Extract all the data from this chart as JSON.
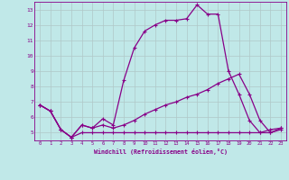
{
  "xlabel": "Windchill (Refroidissement éolien,°C)",
  "xlim": [
    -0.5,
    23.5
  ],
  "ylim": [
    4.5,
    13.5
  ],
  "yticks": [
    5,
    6,
    7,
    8,
    9,
    10,
    11,
    12,
    13
  ],
  "xticks": [
    0,
    1,
    2,
    3,
    4,
    5,
    6,
    7,
    8,
    9,
    10,
    11,
    12,
    13,
    14,
    15,
    16,
    17,
    18,
    19,
    20,
    21,
    22,
    23
  ],
  "background_color": "#c0e8e8",
  "line_color": "#880088",
  "grid_color": "#b0c8c8",
  "line1_x": [
    0,
    1,
    2,
    3,
    4,
    5,
    6,
    7,
    8,
    9,
    10,
    11,
    12,
    13,
    14,
    15,
    16,
    17,
    18,
    19,
    20,
    21,
    22,
    23
  ],
  "line1_y": [
    6.8,
    6.4,
    5.2,
    4.7,
    5.5,
    5.3,
    5.9,
    5.5,
    8.4,
    10.5,
    11.6,
    12.0,
    12.3,
    12.3,
    12.4,
    13.3,
    12.7,
    12.7,
    9.0,
    7.5,
    5.8,
    5.0,
    5.2,
    5.3
  ],
  "line2_x": [
    0,
    1,
    2,
    3,
    4,
    5,
    6,
    7,
    8,
    9,
    10,
    11,
    12,
    13,
    14,
    15,
    16,
    17,
    18,
    19,
    20,
    21,
    22,
    23
  ],
  "line2_y": [
    6.8,
    6.4,
    5.2,
    4.7,
    5.0,
    5.0,
    5.0,
    5.0,
    5.0,
    5.0,
    5.0,
    5.0,
    5.0,
    5.0,
    5.0,
    5.0,
    5.0,
    5.0,
    5.0,
    5.0,
    5.0,
    5.0,
    5.0,
    5.2
  ],
  "line3_x": [
    0,
    1,
    2,
    3,
    4,
    5,
    6,
    7,
    8,
    9,
    10,
    11,
    12,
    13,
    14,
    15,
    16,
    17,
    18,
    19,
    20,
    21,
    22,
    23
  ],
  "line3_y": [
    6.8,
    6.4,
    5.2,
    4.7,
    5.5,
    5.3,
    5.5,
    5.3,
    5.5,
    5.8,
    6.2,
    6.5,
    6.8,
    7.0,
    7.3,
    7.5,
    7.8,
    8.2,
    8.5,
    8.8,
    7.5,
    5.8,
    5.0,
    5.3
  ]
}
